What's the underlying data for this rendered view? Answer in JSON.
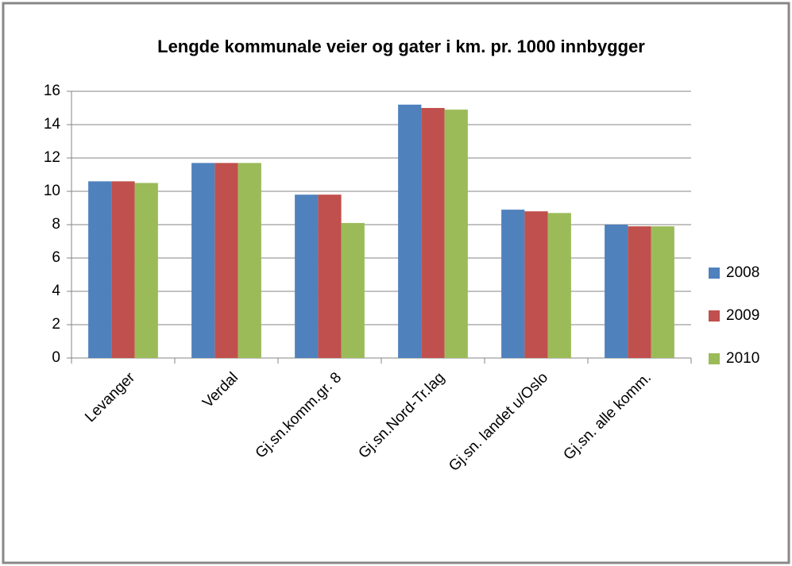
{
  "chart_data": {
    "type": "bar",
    "title": "Lengde kommunale  veier og gater i km. pr. 1000 innbygger",
    "categories": [
      "Levanger",
      "Verdal",
      "Gj.sn.komm.gr. 8",
      "Gj.sn.Nord-Tr.lag",
      "Gj.sn. landet u/Oslo",
      "Gj.sn. alle komm."
    ],
    "series": [
      {
        "name": "2008",
        "color": "#4f81bd",
        "values": [
          10.6,
          11.7,
          9.8,
          15.2,
          8.9,
          8.0
        ]
      },
      {
        "name": "2009",
        "color": "#c0504d",
        "values": [
          10.6,
          11.7,
          9.8,
          15.0,
          8.8,
          7.9
        ]
      },
      {
        "name": "2010",
        "color": "#9bbb59",
        "values": [
          10.5,
          11.7,
          8.1,
          14.9,
          8.7,
          7.9
        ]
      }
    ],
    "ylim": [
      0,
      16
    ],
    "yticks": [
      0,
      2,
      4,
      6,
      8,
      10,
      12,
      14,
      16
    ],
    "grid": true,
    "legend": "right"
  }
}
